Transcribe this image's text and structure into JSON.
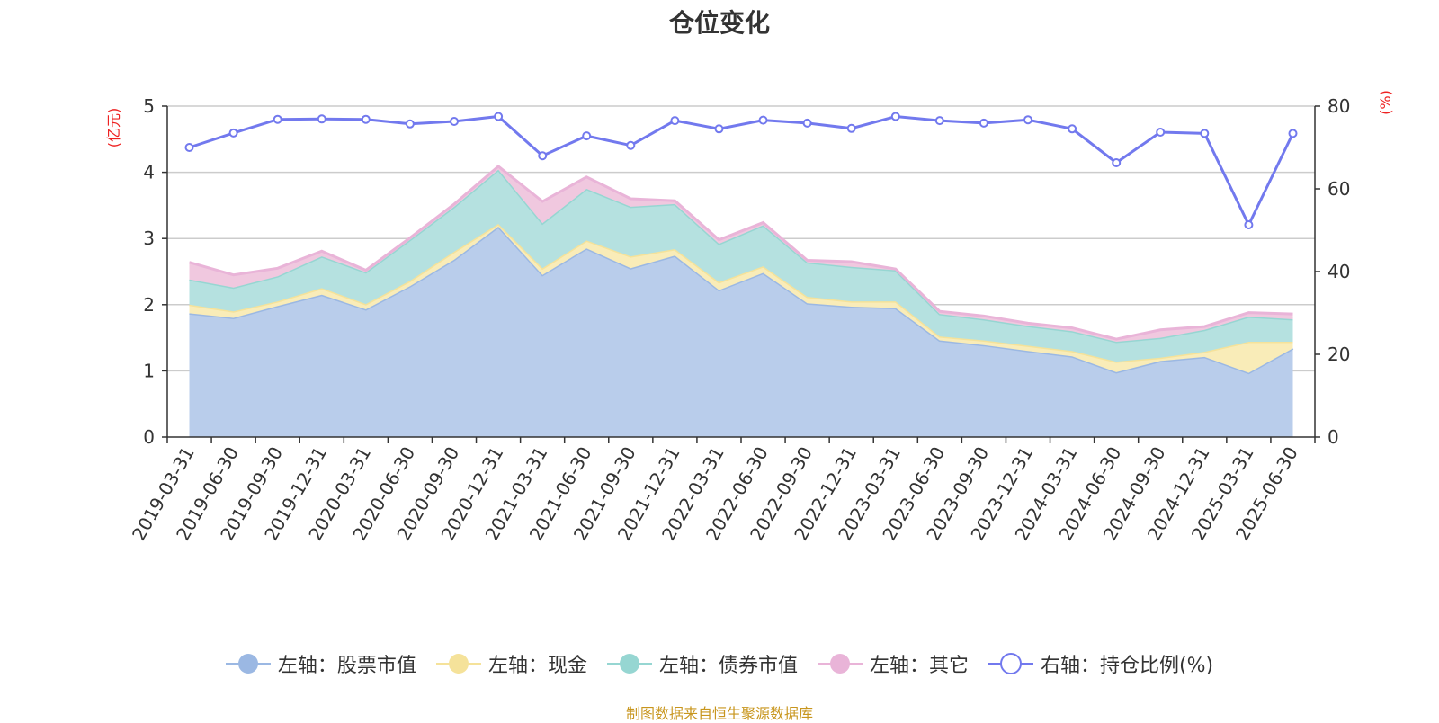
{
  "title": "仓位变化",
  "source_note": "制图数据来自恒生聚源数据库",
  "chart_data": {
    "type": "area",
    "stacked": true,
    "title": "仓位变化",
    "categories": [
      "2019-03-31",
      "2019-06-30",
      "2019-09-30",
      "2019-12-31",
      "2020-03-31",
      "2020-06-30",
      "2020-09-30",
      "2020-12-31",
      "2021-03-31",
      "2021-06-30",
      "2021-09-30",
      "2021-12-31",
      "2022-03-31",
      "2022-06-30",
      "2022-09-30",
      "2022-12-31",
      "2023-03-31",
      "2023-06-30",
      "2023-09-30",
      "2023-12-31",
      "2024-03-31",
      "2024-06-30",
      "2024-09-30",
      "2024-12-31",
      "2025-03-31",
      "2025-06-30"
    ],
    "left_axis": {
      "label": "(亿元)",
      "ylim": [
        0,
        5
      ],
      "ticks": [
        0,
        1,
        2,
        3,
        4,
        5
      ]
    },
    "right_axis": {
      "label": "(%)",
      "ylim": [
        0,
        80
      ],
      "ticks": [
        0,
        20,
        40,
        60,
        80
      ]
    },
    "grid": true,
    "legend_position": "bottom",
    "series": [
      {
        "name": "左轴：股票市值",
        "axis": "left",
        "kind": "area",
        "color": "#9bb8e3",
        "fill": "#b9cdeb",
        "values": [
          1.87,
          1.8,
          1.98,
          2.15,
          1.93,
          2.28,
          2.68,
          3.18,
          2.45,
          2.85,
          2.55,
          2.74,
          2.22,
          2.48,
          2.02,
          1.97,
          1.95,
          1.46,
          1.39,
          1.3,
          1.22,
          0.98,
          1.15,
          1.21,
          0.97,
          1.34
        ]
      },
      {
        "name": "左轴：现金",
        "axis": "left",
        "kind": "area",
        "color": "#f5e29a",
        "fill": "#f9ecb8",
        "values": [
          0.13,
          0.1,
          0.07,
          0.1,
          0.08,
          0.08,
          0.12,
          0.04,
          0.1,
          0.12,
          0.18,
          0.1,
          0.12,
          0.1,
          0.1,
          0.08,
          0.1,
          0.06,
          0.07,
          0.08,
          0.08,
          0.16,
          0.05,
          0.08,
          0.47,
          0.1
        ]
      },
      {
        "name": "左轴：债券市值",
        "axis": "left",
        "kind": "area",
        "color": "#96d6d2",
        "fill": "#b5e1e0",
        "values": [
          0.38,
          0.36,
          0.38,
          0.48,
          0.48,
          0.62,
          0.68,
          0.82,
          0.68,
          0.78,
          0.75,
          0.68,
          0.58,
          0.62,
          0.52,
          0.52,
          0.47,
          0.34,
          0.32,
          0.3,
          0.3,
          0.3,
          0.3,
          0.33,
          0.38,
          0.34
        ]
      },
      {
        "name": "左轴：其它",
        "axis": "left",
        "kind": "area",
        "color": "#e9b4d8",
        "fill": "#f0c8df",
        "values": [
          0.26,
          0.19,
          0.12,
          0.08,
          0.03,
          0.03,
          0.04,
          0.05,
          0.33,
          0.18,
          0.12,
          0.05,
          0.06,
          0.04,
          0.03,
          0.08,
          0.02,
          0.04,
          0.05,
          0.04,
          0.05,
          0.04,
          0.12,
          0.05,
          0.06,
          0.08
        ]
      },
      {
        "name": "右轴：持仓比例(%)",
        "axis": "right",
        "kind": "line",
        "color": "#7279ee",
        "fill": "#ffffff",
        "values": [
          70.0,
          73.5,
          76.8,
          76.9,
          76.8,
          75.7,
          76.3,
          77.5,
          68.0,
          72.8,
          70.5,
          76.5,
          74.5,
          76.6,
          75.9,
          74.6,
          77.5,
          76.5,
          75.9,
          76.7,
          74.5,
          66.3,
          73.7,
          73.4,
          51.3,
          73.4
        ]
      }
    ]
  }
}
